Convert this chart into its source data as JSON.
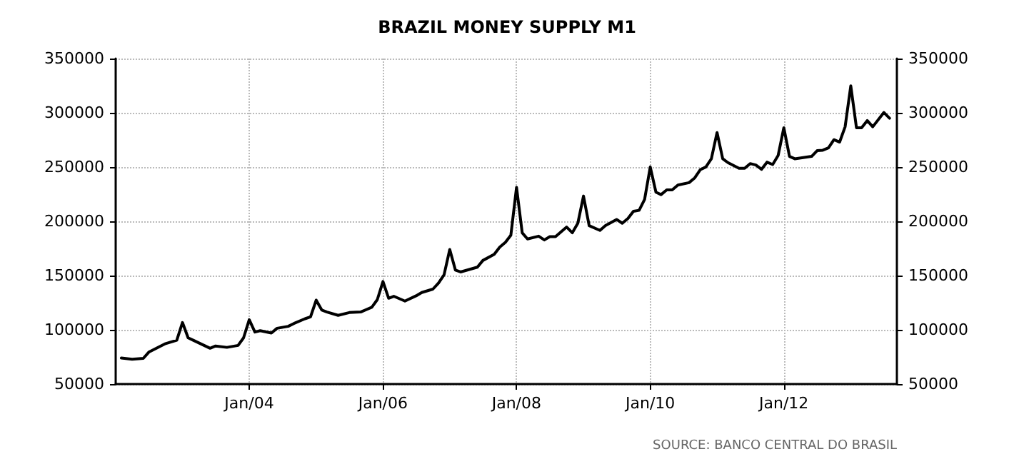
{
  "chart_data": {
    "type": "line",
    "title": "BRAZIL MONEY SUPPLY M1",
    "x": [
      "2002-02",
      "2002-04",
      "2002-06",
      "2002-07",
      "2002-10",
      "2002-12",
      "2003-01",
      "2003-02",
      "2003-03",
      "2003-06",
      "2003-07",
      "2003-09",
      "2003-11",
      "2003-12",
      "2004-01",
      "2004-02",
      "2004-03",
      "2004-05",
      "2004-06",
      "2004-08",
      "2004-09",
      "2004-11",
      "2004-12",
      "2005-01",
      "2005-02",
      "2005-03",
      "2005-05",
      "2005-07",
      "2005-09",
      "2005-11",
      "2005-12",
      "2006-01",
      "2006-02",
      "2006-03",
      "2006-05",
      "2006-07",
      "2006-08",
      "2006-10",
      "2006-11",
      "2006-12",
      "2007-01",
      "2007-02",
      "2007-03",
      "2007-06",
      "2007-07",
      "2007-09",
      "2007-10",
      "2007-11",
      "2007-12",
      "2008-01",
      "2008-02",
      "2008-03",
      "2008-05",
      "2008-06",
      "2008-07",
      "2008-08",
      "2008-10",
      "2008-11",
      "2008-12",
      "2009-01",
      "2009-02",
      "2009-04",
      "2009-05",
      "2009-07",
      "2009-08",
      "2009-09",
      "2009-10",
      "2009-11",
      "2009-12",
      "2010-01",
      "2010-02",
      "2010-03",
      "2010-04",
      "2010-05",
      "2010-06",
      "2010-08",
      "2010-09",
      "2010-10",
      "2010-11",
      "2010-12",
      "2011-01",
      "2011-02",
      "2011-03",
      "2011-05",
      "2011-06",
      "2011-07",
      "2011-08",
      "2011-09",
      "2011-10",
      "2011-11",
      "2011-12",
      "2012-01",
      "2012-02",
      "2012-03",
      "2012-06",
      "2012-07",
      "2012-08",
      "2012-09",
      "2012-10",
      "2012-11",
      "2012-12",
      "2013-01",
      "2013-02",
      "2013-03",
      "2013-04",
      "2013-05",
      "2013-07",
      "2013-08"
    ],
    "series": [
      {
        "color": "#000000",
        "values": [
          74000,
          72800,
          73700,
          79400,
          87300,
          90400,
          106700,
          92600,
          90400,
          83000,
          85100,
          83800,
          85600,
          92600,
          109300,
          97900,
          99200,
          97000,
          101400,
          103200,
          105800,
          110200,
          111900,
          127300,
          118100,
          116400,
          113300,
          115900,
          116400,
          120800,
          127800,
          144500,
          129100,
          130900,
          126500,
          131300,
          134400,
          137500,
          143200,
          150700,
          174000,
          155000,
          153300,
          157700,
          163900,
          169600,
          176200,
          180600,
          187200,
          231200,
          189400,
          183700,
          186300,
          182800,
          185900,
          185900,
          194700,
          189400,
          198200,
          223300,
          196000,
          191600,
          196000,
          201700,
          198200,
          202600,
          209200,
          210100,
          220200,
          250100,
          226800,
          224600,
          229000,
          229000,
          233400,
          235600,
          240000,
          247500,
          250100,
          257600,
          281800,
          257600,
          254100,
          248800,
          248800,
          253200,
          251900,
          247900,
          254500,
          252300,
          260700,
          286200,
          259800,
          257600,
          259800,
          265100,
          265500,
          267700,
          275200,
          273000,
          287100,
          324900,
          286200,
          286200,
          292800,
          287100,
          300300,
          295000
        ]
      }
    ],
    "xlim": [
      "2002-01",
      "2013-09-10"
    ],
    "xticks": [
      {
        "value": "2004-01",
        "label": "Jan/04"
      },
      {
        "value": "2006-01",
        "label": "Jan/06"
      },
      {
        "value": "2008-01",
        "label": "Jan/08"
      },
      {
        "value": "2010-01",
        "label": "Jan/10"
      },
      {
        "value": "2012-01",
        "label": "Jan/12"
      }
    ],
    "ylim": [
      50000,
      350000
    ],
    "yticks": [
      50000,
      100000,
      150000,
      200000,
      250000,
      300000,
      350000
    ],
    "y2lim": [
      50000,
      350000
    ],
    "y2ticks": [
      50000,
      100000,
      150000,
      200000,
      250000,
      300000,
      350000
    ],
    "grid": true,
    "marker": "none",
    "line_style": "solid",
    "annotations": [
      "SOURCE: BANCO CENTRAL DO BRASIL"
    ]
  }
}
